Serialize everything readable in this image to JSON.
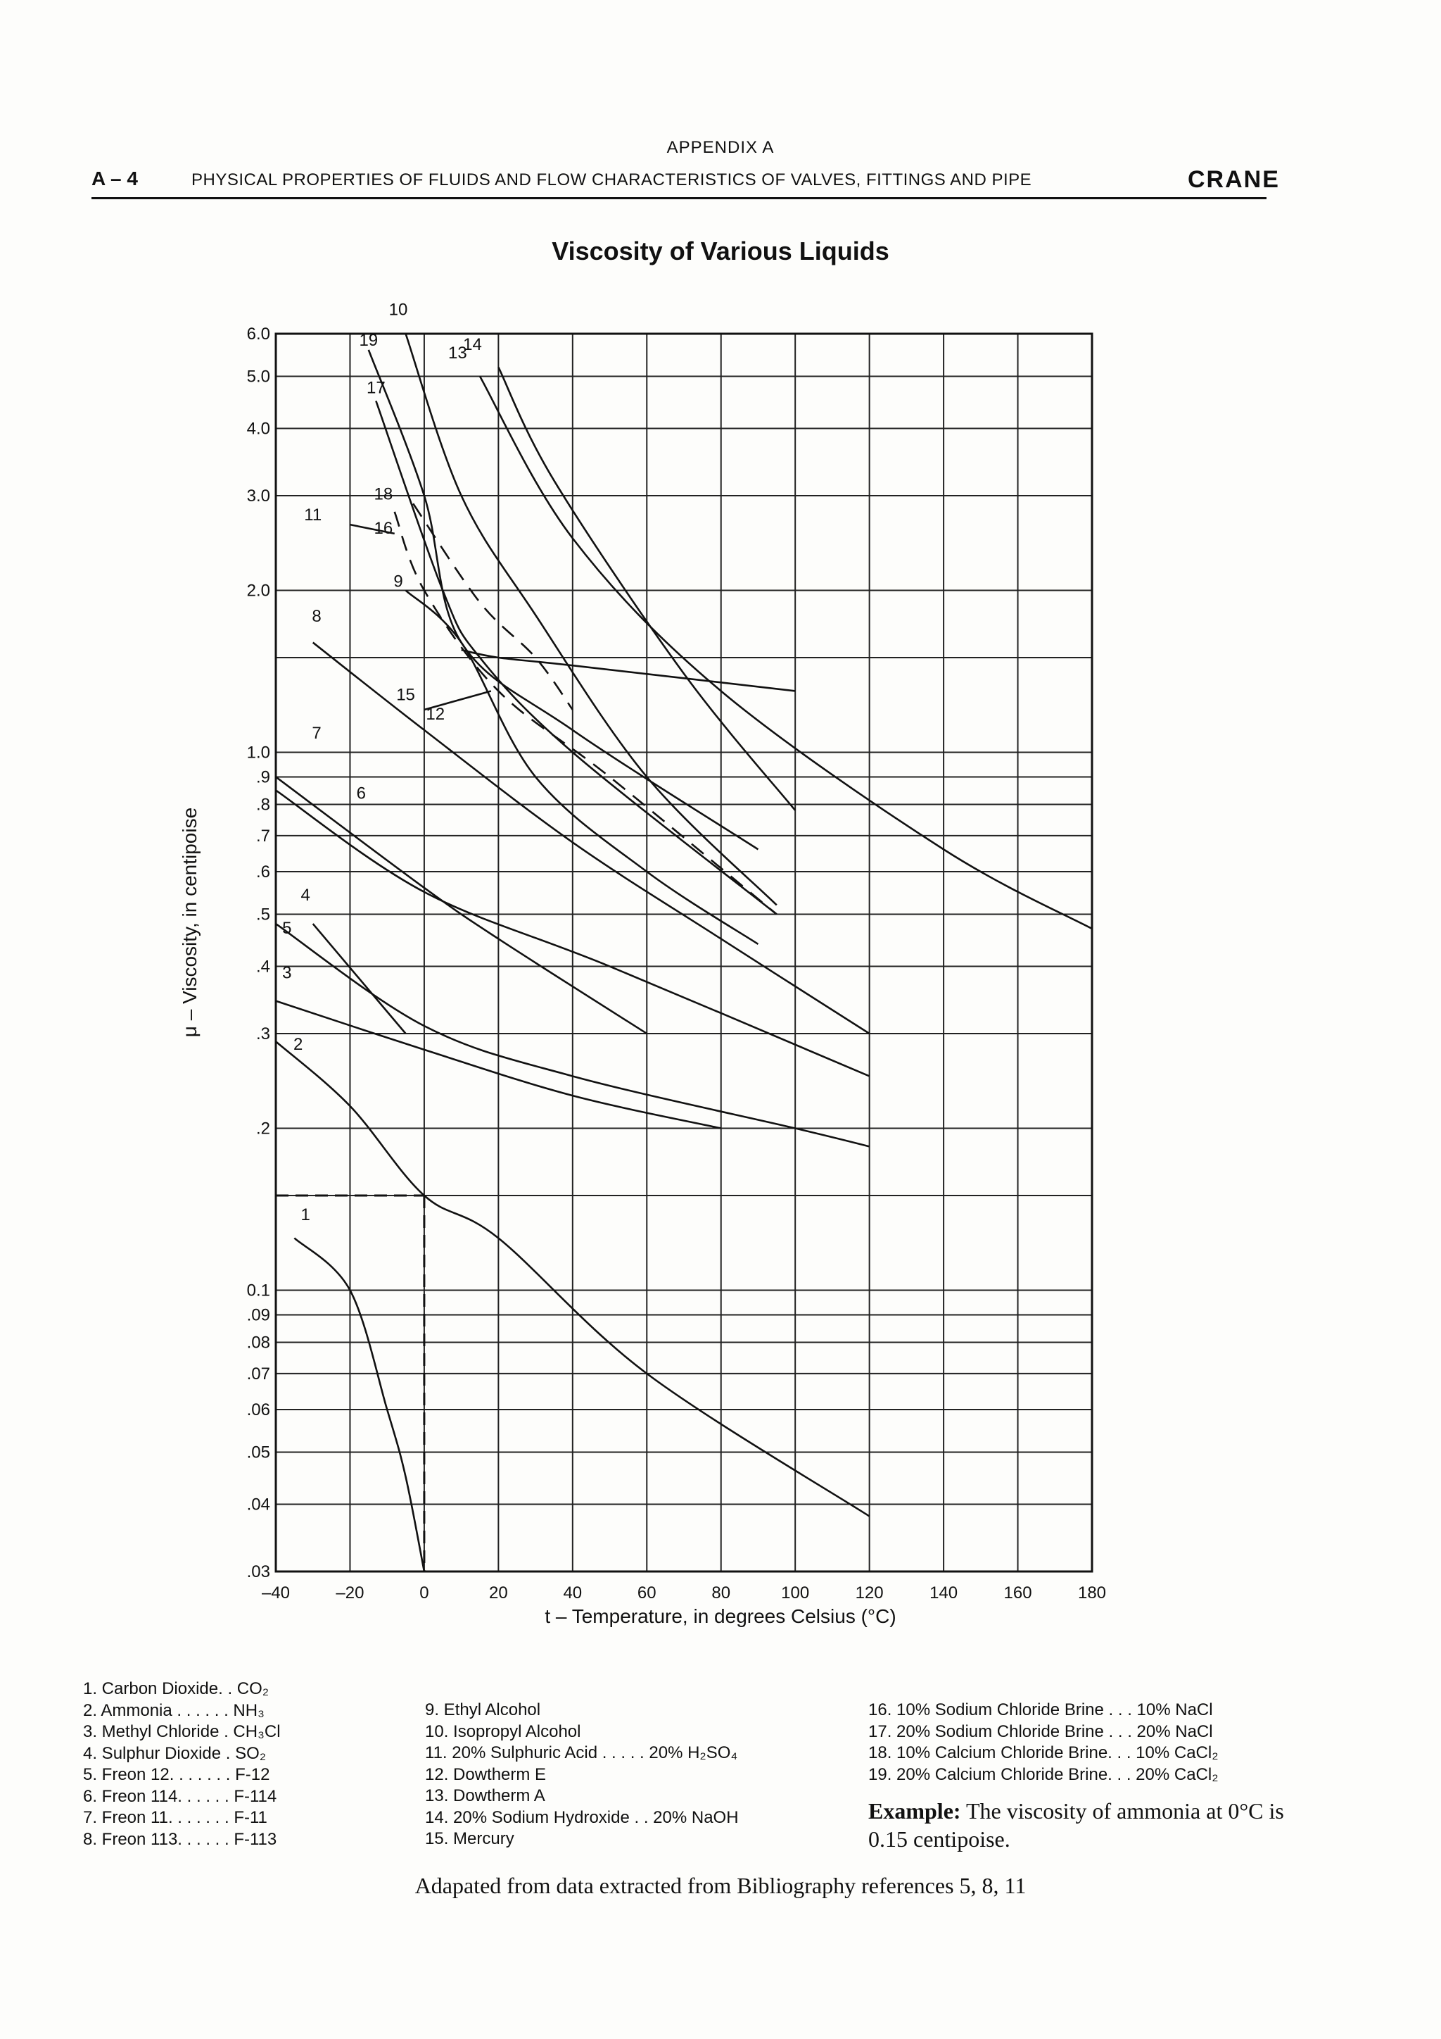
{
  "header": {
    "appendix": "APPENDIX A",
    "page_label": "A – 4",
    "title": "PHYSICAL PROPERTIES OF FLUIDS AND FLOW CHARACTERISTICS OF VALVES, FITTINGS AND PIPE",
    "brand": "CRANE"
  },
  "chart_data": {
    "type": "line",
    "title": "Viscosity of Various Liquids",
    "xlabel": "t – Temperature, in degrees Celsius (°C)",
    "ylabel": "μ – Viscosity, in centipoise",
    "x_scale": "linear",
    "y_scale": "log",
    "xlim": [
      -40,
      180
    ],
    "ylim": [
      0.03,
      6.0
    ],
    "grid": true,
    "x_ticks": [
      -40,
      -20,
      0,
      20,
      40,
      60,
      80,
      100,
      120,
      140,
      160,
      180
    ],
    "x_tick_labels": [
      "–40",
      "–20",
      "0",
      "20",
      "40",
      "60",
      "80",
      "100",
      "120",
      "140",
      "160",
      "180"
    ],
    "y_ticks": [
      6.0,
      5.0,
      4.0,
      3.0,
      2.0,
      1.5,
      1.0,
      0.9,
      0.8,
      0.7,
      0.6,
      0.5,
      0.4,
      0.3,
      0.2,
      0.15,
      0.1,
      0.09,
      0.08,
      0.07,
      0.06,
      0.05,
      0.04,
      0.03
    ],
    "y_tick_labels": [
      "6.0",
      "5.0",
      "4.0",
      "3.0",
      "2.0",
      "",
      "1.0",
      ".9",
      ".8",
      ".7",
      ".6",
      ".5",
      ".4",
      ".3",
      ".2",
      "",
      "0.1",
      ".09",
      ".08",
      ".07",
      ".06",
      ".05",
      ".04",
      ".03"
    ],
    "series": [
      {
        "id": "1",
        "dashed": false,
        "points": [
          [
            -35,
            0.125
          ],
          [
            -20,
            0.1
          ],
          [
            -10,
            0.06
          ],
          [
            -5,
            0.045
          ],
          [
            0,
            0.03
          ]
        ]
      },
      {
        "id": "2",
        "dashed": false,
        "points": [
          [
            -40,
            0.29
          ],
          [
            -20,
            0.22
          ],
          [
            0,
            0.15
          ],
          [
            20,
            0.125
          ],
          [
            60,
            0.07
          ],
          [
            120,
            0.038
          ]
        ]
      },
      {
        "id": "3",
        "dashed": false,
        "points": [
          [
            -40,
            0.345
          ],
          [
            0,
            0.28
          ],
          [
            40,
            0.23
          ],
          [
            80,
            0.2
          ]
        ]
      },
      {
        "id": "4",
        "dashed": false,
        "points": [
          [
            -30,
            0.48
          ],
          [
            -5,
            0.3
          ]
        ]
      },
      {
        "id": "5",
        "dashed": false,
        "points": [
          [
            -40,
            0.48
          ],
          [
            0,
            0.31
          ],
          [
            40,
            0.25
          ],
          [
            100,
            0.2
          ],
          [
            120,
            0.185
          ]
        ]
      },
      {
        "id": "6",
        "dashed": false,
        "points": [
          [
            -40,
            0.85
          ],
          [
            0,
            0.55
          ],
          [
            50,
            0.4
          ],
          [
            120,
            0.25
          ]
        ]
      },
      {
        "id": "7",
        "dashed": false,
        "points": [
          [
            -40,
            0.9
          ],
          [
            0,
            0.56
          ],
          [
            20,
            0.45
          ],
          [
            60,
            0.3
          ]
        ]
      },
      {
        "id": "8",
        "dashed": false,
        "points": [
          [
            -30,
            1.6
          ],
          [
            0,
            1.1
          ],
          [
            40,
            0.68
          ],
          [
            80,
            0.45
          ],
          [
            120,
            0.3
          ]
        ]
      },
      {
        "id": "9",
        "dashed": false,
        "points": [
          [
            -5,
            2.0
          ],
          [
            10,
            1.6
          ],
          [
            30,
            0.9
          ],
          [
            60,
            0.6
          ],
          [
            90,
            0.44
          ]
        ]
      },
      {
        "id": "10",
        "dashed": false,
        "points": [
          [
            -5,
            6.0
          ],
          [
            10,
            3.0
          ],
          [
            30,
            1.8
          ],
          [
            60,
            0.9
          ],
          [
            95,
            0.52
          ]
        ]
      },
      {
        "id": "11",
        "dashed": false,
        "points": [
          [
            -20,
            2.65
          ],
          [
            -8,
            2.55
          ]
        ]
      },
      {
        "id": "12",
        "dashed": false,
        "points": [
          [
            0,
            1.2
          ],
          [
            18,
            1.3
          ]
        ]
      },
      {
        "id": "13",
        "dashed": false,
        "points": [
          [
            15,
            5.0
          ],
          [
            40,
            2.5
          ],
          [
            80,
            1.3
          ],
          [
            140,
            0.66
          ],
          [
            180,
            0.47
          ]
        ]
      },
      {
        "id": "14",
        "dashed": false,
        "points": [
          [
            20,
            5.2
          ],
          [
            35,
            3.2
          ],
          [
            70,
            1.4
          ],
          [
            100,
            0.78
          ]
        ]
      },
      {
        "id": "15",
        "dashed": false,
        "points": [
          [
            10,
            1.55
          ],
          [
            20,
            1.5
          ],
          [
            40,
            1.45
          ],
          [
            100,
            1.3
          ]
        ]
      },
      {
        "id": "16",
        "dashed": true,
        "points": [
          [
            -8,
            2.8
          ],
          [
            0,
            2.0
          ],
          [
            20,
            1.3
          ],
          [
            50,
            0.9
          ],
          [
            95,
            0.5
          ]
        ]
      },
      {
        "id": "17",
        "dashed": false,
        "points": [
          [
            -13,
            4.5
          ],
          [
            5,
            2.0
          ],
          [
            15,
            1.5
          ],
          [
            40,
            1.0
          ],
          [
            95,
            0.5
          ]
        ]
      },
      {
        "id": "18",
        "dashed": true,
        "points": [
          [
            -3,
            2.9
          ],
          [
            15,
            1.9
          ],
          [
            30,
            1.5
          ],
          [
            40,
            1.2
          ]
        ]
      },
      {
        "id": "19",
        "dashed": false,
        "points": [
          [
            -15,
            5.6
          ],
          [
            0,
            3.0
          ],
          [
            10,
            1.6
          ],
          [
            40,
            1.1
          ],
          [
            90,
            0.66
          ]
        ]
      }
    ],
    "curve_labels": [
      {
        "id": "1",
        "x": -32,
        "y": 0.135
      },
      {
        "id": "2",
        "x": -34,
        "y": 0.28
      },
      {
        "id": "3",
        "x": -37,
        "y": 0.38
      },
      {
        "id": "4",
        "x": -32,
        "y": 0.53
      },
      {
        "id": "5",
        "x": -37,
        "y": 0.46
      },
      {
        "id": "6",
        "x": -17,
        "y": 0.82
      },
      {
        "id": "7",
        "x": -29,
        "y": 1.06
      },
      {
        "id": "8",
        "x": -29,
        "y": 1.75
      },
      {
        "id": "9",
        "x": -7,
        "y": 2.03
      },
      {
        "id": "10",
        "x": -7,
        "y": 6.5
      },
      {
        "id": "11",
        "x": -30,
        "y": 2.7
      },
      {
        "id": "12",
        "x": 3,
        "y": 1.15
      },
      {
        "id": "13",
        "x": 9,
        "y": 5.4
      },
      {
        "id": "14",
        "x": 13,
        "y": 5.6
      },
      {
        "id": "15",
        "x": -5,
        "y": 1.25
      },
      {
        "id": "16",
        "x": -11,
        "y": 2.55
      },
      {
        "id": "17",
        "x": -13,
        "y": 4.65
      },
      {
        "id": "18",
        "x": -11,
        "y": 2.95
      },
      {
        "id": "19",
        "x": -15,
        "y": 5.7
      }
    ],
    "annotation": {
      "x": 0,
      "y": 0.15,
      "label": "Example: ammonia at 0°C"
    }
  },
  "legend": {
    "col1": [
      "1.  Carbon Dioxide. . CO₂",
      "2.  Ammonia . . . . . . NH₃",
      "3.  Methyl Chloride  . CH₃Cl",
      "4.  Sulphur Dioxide . SO₂",
      "5.  Freon 12. . . . . . . F-12",
      "6.  Freon 114. . . . . . F-114",
      "7.  Freon 11. . . . . . . F-11",
      "8.  Freon 113. . . . . . F-113"
    ],
    "col2": [
      "9.  Ethyl Alcohol",
      "10.  Isopropyl Alcohol",
      "11.  20% Sulphuric Acid . . . . .  20% H₂SO₄",
      "12.  Dowtherm E",
      "13.  Dowtherm A",
      "14.  20% Sodium Hydroxide . .  20% NaOH",
      "15.  Mercury"
    ],
    "col3": [
      "16.  10% Sodium Chloride Brine . . . 10% NaCl",
      "17.  20% Sodium Chloride Brine . . . 20% NaCl",
      "18.  10% Calcium Chloride Brine. . . 10% CaCl₂",
      "19.  20% Calcium Chloride Brine. . . 20% CaCl₂"
    ]
  },
  "example": {
    "label": "Example:",
    "text": " The viscosity of ammonia at 0°C is 0.15 centipoise."
  },
  "footnote": "Adapated from data extracted from Bibliography references 5, 8, 11"
}
